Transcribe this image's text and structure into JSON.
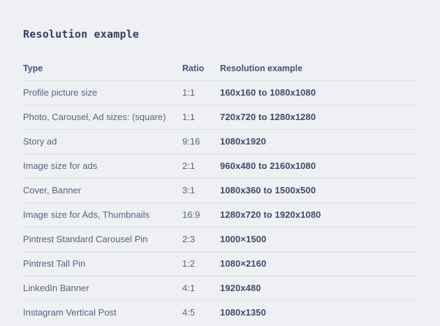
{
  "page": {
    "title": "Resolution example"
  },
  "table": {
    "headers": [
      "Type",
      "Ratio",
      "Resolution example"
    ],
    "rows": [
      {
        "type": "Profile picture size",
        "ratio": "1:1",
        "resolution": "160x160 to 1080x1080"
      },
      {
        "type": "Photo, Carousel, Ad sizes: (square)",
        "ratio": "1:1",
        "resolution": "720x720 to 1280x1280"
      },
      {
        "type": "Story ad",
        "ratio": "9:16",
        "resolution": "1080x1920"
      },
      {
        "type": "Image size for ads",
        "ratio": "2:1",
        "resolution": "960x480 to 2160x1080"
      },
      {
        "type": "Cover, Banner",
        "ratio": "3:1",
        "resolution": "1080x360 to 1500x500"
      },
      {
        "type": "Image size for Ads, Thumbnails",
        "ratio": "16:9",
        "resolution": "1280x720 to 1920x1080"
      },
      {
        "type": "Pintrest Standard Carousel Pin",
        "ratio": "2:3",
        "resolution": "1000×1500"
      },
      {
        "type": "Pintrest Tall Pin",
        "ratio": "1:2",
        "resolution": "1080×2160"
      },
      {
        "type": "LinkedIn Banner",
        "ratio": "4:1",
        "resolution": "1920x480"
      },
      {
        "type": "Instagram Vertical Post",
        "ratio": "4:5",
        "resolution": "1080x1350"
      }
    ]
  },
  "colors": {
    "background": "#eef0f4",
    "title_text": "#363c61",
    "header_text": "#49507a",
    "body_text": "#5b6180",
    "value_text": "#414869",
    "divider": "#dde0e9"
  }
}
